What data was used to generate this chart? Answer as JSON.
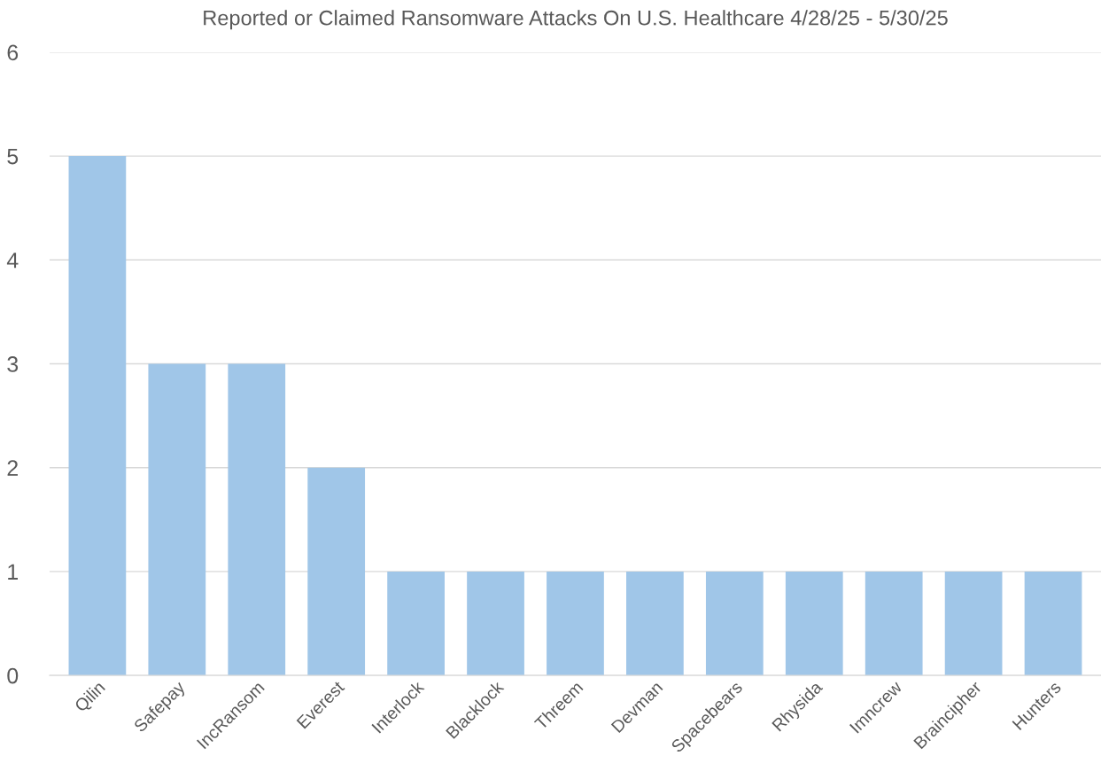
{
  "chart_data": {
    "type": "bar",
    "title": "Reported or Claimed Ransomware Attacks On U.S. Healthcare 4/28/25 - 5/30/25",
    "categories": [
      "Qilin",
      "Safepay",
      "IncRansom",
      "Everest",
      "Interlock",
      "Blacklock",
      "Threem",
      "Devman",
      "Spacebears",
      "Rhysida",
      "Imncrew",
      "Braincipher",
      "Hunters"
    ],
    "values": [
      5,
      3,
      3,
      2,
      1,
      1,
      1,
      1,
      1,
      1,
      1,
      1,
      1
    ],
    "color": "#a0c6e8",
    "ylim": [
      0,
      6
    ],
    "yticks": [
      0,
      1,
      2,
      3,
      4,
      5,
      6
    ],
    "grid": "y"
  }
}
